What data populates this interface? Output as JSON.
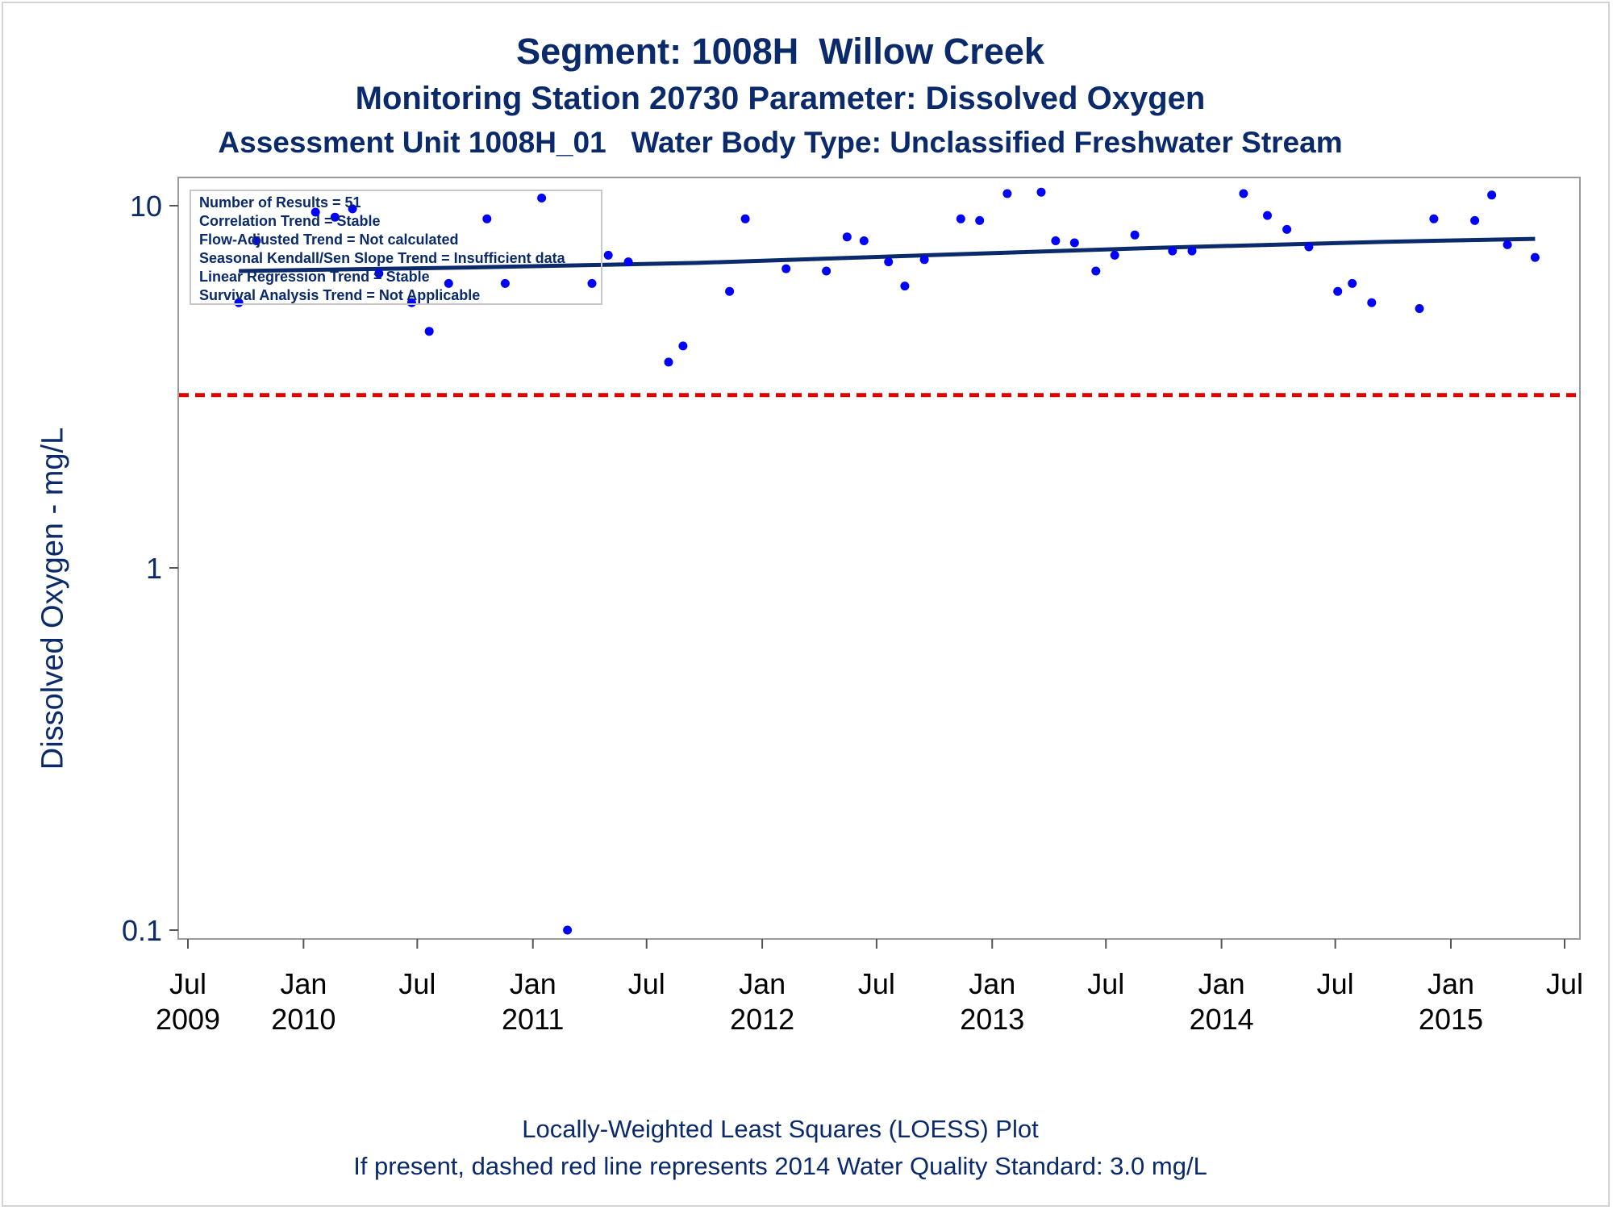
{
  "titles": {
    "line1": "Segment: 1008H  Willow Creek",
    "line2": "Monitoring Station 20730 Parameter: Dissolved Oxygen",
    "line3": "Assessment Unit 1008H_01   Water Body Type: Unclassified Freshwater Stream"
  },
  "footnotes": {
    "line1": "Locally-Weighted Least Squares (LOESS) Plot",
    "line2": "If present, dashed red line represents 2014 Water Quality Standard: 3.0 mg/L"
  },
  "chart_data": {
    "type": "scatter",
    "ylabel": "Dissolved Oxygen - mg/L",
    "yscale": "log",
    "ylim": [
      0.09,
      13
    ],
    "xlim": [
      "2009-06-15",
      "2015-07-10"
    ],
    "yticks": [
      {
        "value": 0.1,
        "label": "0.1"
      },
      {
        "value": 1,
        "label": "1"
      },
      {
        "value": 10,
        "label": "10"
      }
    ],
    "xticks": [
      {
        "date": "2009-07-01",
        "month": "Jul",
        "year": "2009"
      },
      {
        "date": "2010-01-01",
        "month": "Jan",
        "year": "2010"
      },
      {
        "date": "2010-07-01",
        "month": "Jul",
        "year": ""
      },
      {
        "date": "2011-01-01",
        "month": "Jan",
        "year": "2011"
      },
      {
        "date": "2011-07-01",
        "month": "Jul",
        "year": ""
      },
      {
        "date": "2012-01-01",
        "month": "Jan",
        "year": "2012"
      },
      {
        "date": "2012-07-01",
        "month": "Jul",
        "year": ""
      },
      {
        "date": "2013-01-01",
        "month": "Jan",
        "year": "2013"
      },
      {
        "date": "2013-07-01",
        "month": "Jul",
        "year": ""
      },
      {
        "date": "2014-01-01",
        "month": "Jan",
        "year": "2014"
      },
      {
        "date": "2014-07-01",
        "month": "Jul",
        "year": ""
      },
      {
        "date": "2015-01-01",
        "month": "Jan",
        "year": "2015"
      },
      {
        "date": "2015-07-01",
        "month": "Jul",
        "year": ""
      }
    ],
    "standard": {
      "value": 3.0,
      "color": "#dd0000",
      "style": "dashed"
    },
    "points_color": "#0000ff",
    "trend_color": "#0a2a6b",
    "points": [
      {
        "date": "2009-09-20",
        "value": 5.4
      },
      {
        "date": "2009-10-18",
        "value": 8.0
      },
      {
        "date": "2010-01-20",
        "value": 9.6
      },
      {
        "date": "2010-02-20",
        "value": 9.3
      },
      {
        "date": "2010-03-20",
        "value": 9.8
      },
      {
        "date": "2010-05-01",
        "value": 6.5
      },
      {
        "date": "2010-06-22",
        "value": 5.4
      },
      {
        "date": "2010-07-20",
        "value": 4.5
      },
      {
        "date": "2010-08-20",
        "value": 6.1
      },
      {
        "date": "2010-10-20",
        "value": 9.2
      },
      {
        "date": "2010-11-18",
        "value": 6.1
      },
      {
        "date": "2011-01-15",
        "value": 10.5
      },
      {
        "date": "2011-02-25",
        "value": 0.1
      },
      {
        "date": "2011-04-05",
        "value": 6.1
      },
      {
        "date": "2011-05-01",
        "value": 7.3
      },
      {
        "date": "2011-06-02",
        "value": 7.0
      },
      {
        "date": "2011-08-05",
        "value": 3.7
      },
      {
        "date": "2011-08-28",
        "value": 4.1
      },
      {
        "date": "2011-11-10",
        "value": 5.8
      },
      {
        "date": "2011-12-05",
        "value": 9.2
      },
      {
        "date": "2012-02-08",
        "value": 6.7
      },
      {
        "date": "2012-04-12",
        "value": 6.6
      },
      {
        "date": "2012-05-15",
        "value": 8.2
      },
      {
        "date": "2012-06-11",
        "value": 8.0
      },
      {
        "date": "2012-07-20",
        "value": 7.0
      },
      {
        "date": "2012-08-15",
        "value": 6.0
      },
      {
        "date": "2012-09-15",
        "value": 7.1
      },
      {
        "date": "2012-11-12",
        "value": 9.2
      },
      {
        "date": "2012-12-12",
        "value": 9.1
      },
      {
        "date": "2013-01-25",
        "value": 10.8
      },
      {
        "date": "2013-03-20",
        "value": 10.9
      },
      {
        "date": "2013-04-12",
        "value": 8.0
      },
      {
        "date": "2013-05-12",
        "value": 7.9
      },
      {
        "date": "2013-06-15",
        "value": 6.6
      },
      {
        "date": "2013-07-15",
        "value": 7.3
      },
      {
        "date": "2013-08-16",
        "value": 8.3
      },
      {
        "date": "2013-10-15",
        "value": 7.5
      },
      {
        "date": "2013-11-15",
        "value": 7.5
      },
      {
        "date": "2014-02-05",
        "value": 10.8
      },
      {
        "date": "2014-03-15",
        "value": 9.4
      },
      {
        "date": "2014-04-15",
        "value": 8.6
      },
      {
        "date": "2014-05-20",
        "value": 7.7
      },
      {
        "date": "2014-07-05",
        "value": 5.8
      },
      {
        "date": "2014-07-28",
        "value": 6.1
      },
      {
        "date": "2014-08-28",
        "value": 5.4
      },
      {
        "date": "2014-11-12",
        "value": 5.2
      },
      {
        "date": "2014-12-05",
        "value": 9.2
      },
      {
        "date": "2015-02-08",
        "value": 9.1
      },
      {
        "date": "2015-03-07",
        "value": 10.7
      },
      {
        "date": "2015-04-01",
        "value": 7.8
      },
      {
        "date": "2015-05-15",
        "value": 7.2
      }
    ],
    "trend": [
      {
        "date": "2009-09-20",
        "value": 6.6
      },
      {
        "date": "2010-09-20",
        "value": 6.75
      },
      {
        "date": "2011-09-20",
        "value": 6.95
      },
      {
        "date": "2012-09-20",
        "value": 7.3
      },
      {
        "date": "2013-09-20",
        "value": 7.65
      },
      {
        "date": "2014-09-20",
        "value": 7.95
      },
      {
        "date": "2015-05-15",
        "value": 8.1
      }
    ],
    "stats_box": [
      "Number of Results = 51",
      "Correlation Trend = Stable",
      "Flow-Adjusted Trend = Not calculated",
      "Seasonal Kendall/Sen Slope Trend = Insufficient data",
      "Linear Regression Trend = Stable",
      "Survival Analysis Trend = Not Applicable"
    ]
  }
}
